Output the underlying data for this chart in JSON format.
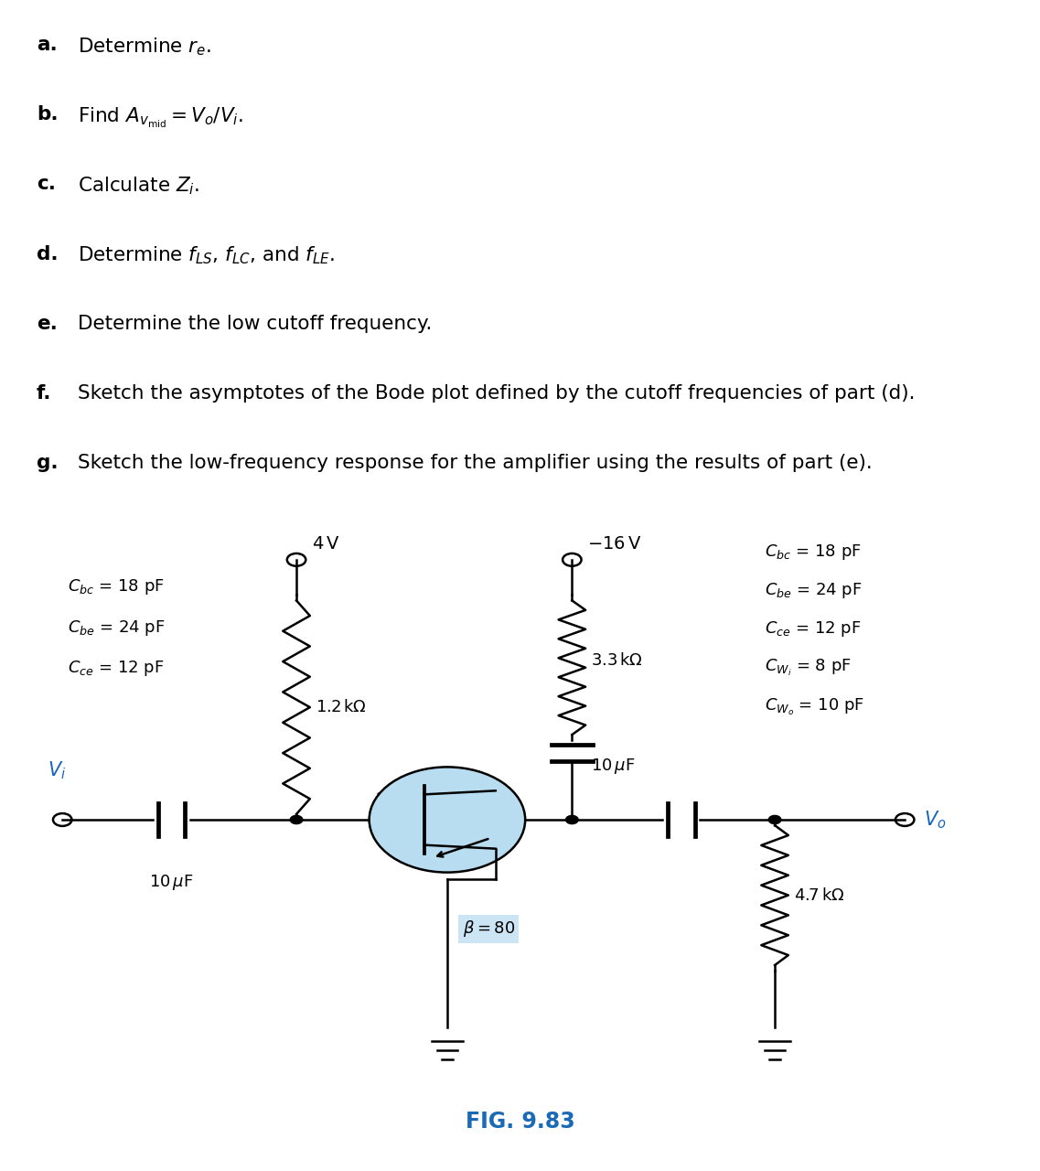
{
  "bg_color": "#ffffff",
  "wire_color": "#000000",
  "fig_label": "FIG. 9.83",
  "fig_label_color": "#1a6ab5",
  "transistor_fill": "#b8ddf0",
  "beta_box_fill": "#cce5f5",
  "vi_color": "#1565c0",
  "vo_color": "#1565c0",
  "text_lines": [
    {
      "label": "a.",
      "content": "Determine $r_e$."
    },
    {
      "label": "b.",
      "content": "Find $A_{v_\\mathrm{mid}} = V_o/V_i$."
    },
    {
      "label": "c.",
      "content": "Calculate $Z_i$."
    },
    {
      "label": "d.",
      "content": "Determine $f_{LS}$, $f_{LC}$, and $f_{LE}$."
    },
    {
      "label": "e.",
      "content": "Determine the low cutoff frequency."
    },
    {
      "label": "f.",
      "content": "Sketch the asymptotes of the Bode plot defined by the cutoff frequencies of part (d)."
    },
    {
      "label": "g.",
      "content": "Sketch the low-frequency response for the amplifier using the results of part (e)."
    }
  ],
  "left_ann": [
    "$C_{bc}$ = 18 pF",
    "$C_{be}$ = 24 pF",
    "$C_{ce}$ = 12 pF"
  ],
  "right_ann": [
    "$C_{bc}$ = 18 pF",
    "$C_{be}$ = 24 pF",
    "$C_{ce}$ = 12 pF",
    "$C_{W_i}$ = 8 pF",
    "$C_{W_o}$ = 10 pF"
  ]
}
